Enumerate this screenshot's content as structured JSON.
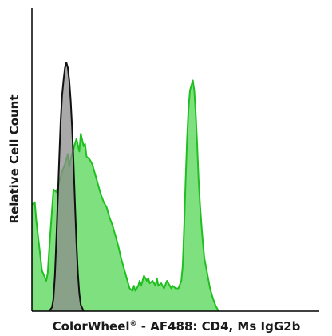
{
  "chart_data": {
    "type": "area",
    "title": "",
    "xlabel": "ColorWheel",
    "xlabel_mark": "®",
    "xlabel_rest": " - AF488: CD4, Ms IgG2b",
    "ylabel": "Relative Cell Count",
    "xlim": [
      0,
      100
    ],
    "ylim": [
      0,
      100
    ],
    "grid": false,
    "legend": "none",
    "series": [
      {
        "role": "stained",
        "fill": "#7fe07f",
        "stroke": "#1fbf1f",
        "points": [
          [
            0,
            42
          ],
          [
            1,
            43
          ],
          [
            1.5,
            36
          ],
          [
            2.5,
            26
          ],
          [
            3.5,
            16
          ],
          [
            5,
            12
          ],
          [
            5.5,
            15
          ],
          [
            6,
            24
          ],
          [
            7,
            40
          ],
          [
            7.5,
            48
          ],
          [
            8.5,
            47
          ],
          [
            9.5,
            51
          ],
          [
            10.5,
            55
          ],
          [
            11.5,
            58
          ],
          [
            12.5,
            62
          ],
          [
            13,
            57
          ],
          [
            13.5,
            60
          ],
          [
            14.5,
            64
          ],
          [
            15.5,
            68
          ],
          [
            16.5,
            63
          ],
          [
            17,
            70
          ],
          [
            18,
            65
          ],
          [
            18.5,
            66
          ],
          [
            19,
            61
          ],
          [
            20,
            60
          ],
          [
            21,
            58
          ],
          [
            22,
            54
          ],
          [
            23,
            50
          ],
          [
            24,
            46
          ],
          [
            25,
            43
          ],
          [
            26,
            41
          ],
          [
            27,
            37
          ],
          [
            28,
            34
          ],
          [
            29,
            30
          ],
          [
            30,
            26
          ],
          [
            31,
            21
          ],
          [
            32,
            17
          ],
          [
            33,
            13
          ],
          [
            34,
            9
          ],
          [
            35,
            8
          ],
          [
            35.5,
            10
          ],
          [
            36,
            8
          ],
          [
            37,
            10
          ],
          [
            37.5,
            12
          ],
          [
            38,
            10
          ],
          [
            39,
            14
          ],
          [
            40,
            12
          ],
          [
            40.5,
            13
          ],
          [
            41,
            11
          ],
          [
            42,
            12
          ],
          [
            43,
            10
          ],
          [
            43.5,
            13
          ],
          [
            44,
            10
          ],
          [
            45,
            11
          ],
          [
            46,
            9
          ],
          [
            47,
            12
          ],
          [
            48,
            10
          ],
          [
            48.5,
            9
          ],
          [
            49,
            10
          ],
          [
            50,
            9
          ],
          [
            51,
            9
          ],
          [
            52,
            12
          ],
          [
            52.5,
            18
          ],
          [
            53,
            34
          ],
          [
            53.5,
            52
          ],
          [
            54,
            68
          ],
          [
            54.5,
            80
          ],
          [
            55,
            87
          ],
          [
            55.5,
            89
          ],
          [
            56,
            91
          ],
          [
            56.5,
            87
          ],
          [
            57,
            78
          ],
          [
            57.5,
            66
          ],
          [
            58,
            52
          ],
          [
            58.5,
            42
          ],
          [
            59,
            34
          ],
          [
            59.5,
            27
          ],
          [
            60,
            21
          ],
          [
            61,
            15
          ],
          [
            62,
            9
          ],
          [
            63,
            5
          ],
          [
            64,
            2
          ],
          [
            65,
            0
          ]
        ]
      },
      {
        "role": "isotype",
        "fill": "#8c8c8c",
        "stroke": "#111111",
        "points": [
          [
            6,
            0
          ],
          [
            7,
            1.5
          ],
          [
            7.5,
            5
          ],
          [
            8,
            14
          ],
          [
            8.5,
            28
          ],
          [
            9,
            44
          ],
          [
            9.5,
            60
          ],
          [
            10,
            75
          ],
          [
            10.5,
            85
          ],
          [
            11,
            91
          ],
          [
            11.5,
            96
          ],
          [
            12,
            98
          ],
          [
            12.5,
            96
          ],
          [
            13,
            91
          ],
          [
            13.5,
            83
          ],
          [
            14,
            72
          ],
          [
            14.5,
            58
          ],
          [
            15,
            42
          ],
          [
            15.5,
            27
          ],
          [
            16,
            15
          ],
          [
            16.5,
            7
          ],
          [
            17,
            2.5
          ],
          [
            18,
            0
          ]
        ]
      }
    ]
  }
}
